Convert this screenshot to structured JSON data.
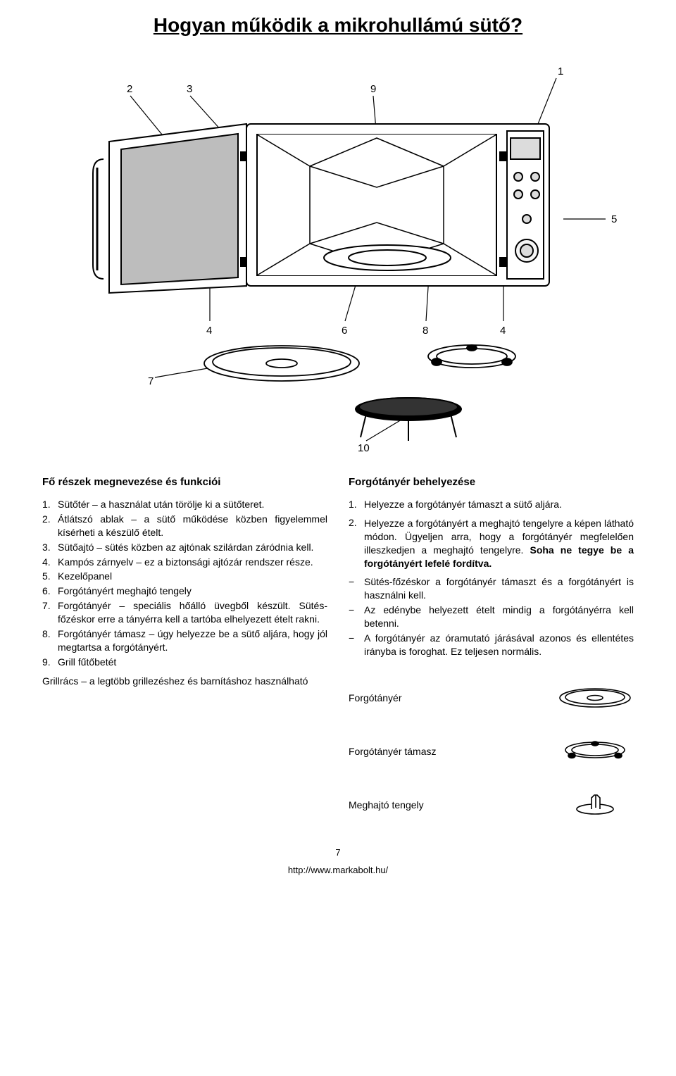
{
  "title": "Hogyan működik a mikrohullámú sütő?",
  "diagram": {
    "callouts": [
      "1",
      "2",
      "3",
      "4",
      "5",
      "6",
      "7",
      "8",
      "9",
      "10"
    ],
    "stroke": "#000000",
    "fill": "#ffffff",
    "door_glass": "#bdbdbd",
    "panel_gray": "#dcdcdc"
  },
  "left": {
    "heading": "Fő részek megnevezése és funkciói",
    "items": [
      {
        "n": "1.",
        "t": "Sütőtér – a használat után törölje ki a sütőteret."
      },
      {
        "n": "2.",
        "t": "Átlátszó ablak – a sütő működése közben figyelemmel kísérheti a készülő ételt."
      },
      {
        "n": "3.",
        "t": "Sütőajtó – sütés közben az ajtónak szilárdan záródnia kell."
      },
      {
        "n": "4.",
        "t": "Kampós zárnyelv – ez a biztonsági ajtózár rendszer része."
      },
      {
        "n": "5.",
        "t": "Kezelőpanel"
      },
      {
        "n": "6.",
        "t": "Forgótányért meghajtó tengely"
      },
      {
        "n": "7.",
        "t": "Forgótányér – speciális hőálló üvegből készült. Sütés-főzéskor erre a tányérra kell a tartóba elhelyezett ételt rakni."
      },
      {
        "n": "8.",
        "t": "Forgótányér támasz – úgy helyezze be a sütő aljára, hogy jól megtartsa a forgótányért."
      },
      {
        "n": "9.",
        "t": "Grill fűtőbetét"
      }
    ],
    "extra": "Grillrács – a legtöbb grillezéshez és barnításhoz használható"
  },
  "right": {
    "heading": "Forgótányér behelyezése",
    "items": [
      {
        "n": "1.",
        "t": "Helyezze a forgótányér támaszt a sütő aljára."
      }
    ],
    "item2_prefix": "2.",
    "item2_plain_a": "Helyezze a forgótányért a meghajtó tengelyre a képen látható módon. Ügyeljen arra, hogy a forgótányér megfelelően illeszkedjen a meghajtó tengelyre. ",
    "item2_bold": "Soha ne tegye be a forgótányért lefelé fordítva.",
    "dash_items": [
      "Sütés-főzéskor a forgótányér támaszt és a forgótányért is használni kell.",
      "Az edénybe helyezett ételt mindig a forgótányérra kell betenni.",
      "A forgótányér az óramutató járásával azonos és ellentétes irányba is foroghat. Ez teljesen normális."
    ],
    "labels": {
      "plate": "Forgótányér",
      "support": "Forgótányér támasz",
      "shaft": "Meghajtó tengely"
    }
  },
  "page_number": "7",
  "footer_url": "http://www.markabolt.hu/"
}
